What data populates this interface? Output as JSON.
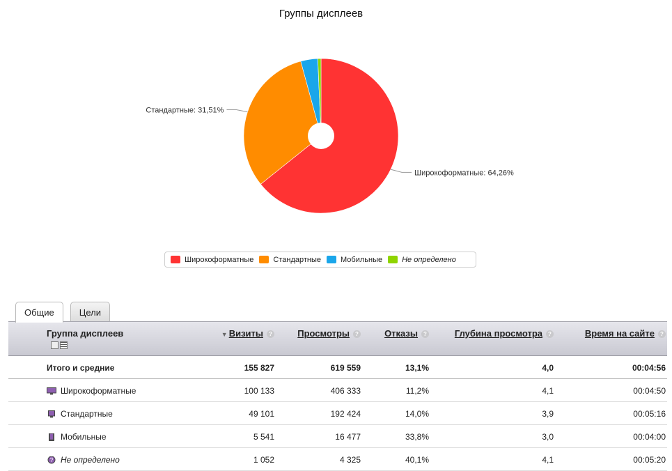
{
  "title": "Группы дисплеев",
  "colors": {
    "widescreen": "#ff3333",
    "standard": "#ff8c00",
    "mobile": "#1aa6ea",
    "undefined": "#8fd400"
  },
  "chart_data": {
    "type": "pie",
    "title": "Группы дисплеев",
    "slices": [
      {
        "name": "Широкоформатные",
        "value": 64.26,
        "label": "Широкоформатные: 64,26%",
        "color": "#ff3333"
      },
      {
        "name": "Стандартные",
        "value": 31.51,
        "label": "Стандартные: 31,51%",
        "color": "#ff8c00"
      },
      {
        "name": "Мобильные",
        "value": 3.56,
        "color": "#1aa6ea"
      },
      {
        "name": "Не определено",
        "value": 0.67,
        "color": "#8fd400"
      }
    ],
    "legend": "bottom-center"
  },
  "legend": [
    {
      "label": "Широкоформатные",
      "color": "#ff3333",
      "italic": false
    },
    {
      "label": "Стандартные",
      "color": "#ff8c00",
      "italic": false
    },
    {
      "label": "Мобильные",
      "color": "#1aa6ea",
      "italic": false
    },
    {
      "label": "Не определено",
      "color": "#8fd400",
      "italic": true
    }
  ],
  "tabs": [
    {
      "label": "Общие",
      "active": true
    },
    {
      "label": "Цели",
      "active": false
    }
  ],
  "table": {
    "headers": {
      "group": "Группа дисплеев",
      "visits": "Визиты",
      "views": "Просмотры",
      "bounce": "Отказы",
      "depth": "Глубина просмотра",
      "time": "Время на сайте",
      "help": "?"
    },
    "total": {
      "name": "Итого и средние",
      "visits": "155 827",
      "views": "619 559",
      "bounce": "13,1%",
      "depth": "4,0",
      "time": "00:04:56"
    },
    "rows": [
      {
        "name": "Широкоформатные",
        "icon": "widescreen-monitor-icon",
        "visits": "100 133",
        "views": "406 333",
        "bounce": "11,2%",
        "depth": "4,1",
        "time": "00:04:50",
        "italic": false
      },
      {
        "name": "Стандартные",
        "icon": "standard-monitor-icon",
        "visits": "49 101",
        "views": "192 424",
        "bounce": "14,0%",
        "depth": "3,9",
        "time": "00:05:16",
        "italic": false
      },
      {
        "name": "Мобильные",
        "icon": "mobile-device-icon",
        "visits": "5 541",
        "views": "16 477",
        "bounce": "33,8%",
        "depth": "3,0",
        "time": "00:04:00",
        "italic": false
      },
      {
        "name": "Не определено",
        "icon": "unknown-device-icon",
        "visits": "1 052",
        "views": "4 325",
        "bounce": "40,1%",
        "depth": "4,1",
        "time": "00:05:20",
        "italic": true
      }
    ]
  }
}
